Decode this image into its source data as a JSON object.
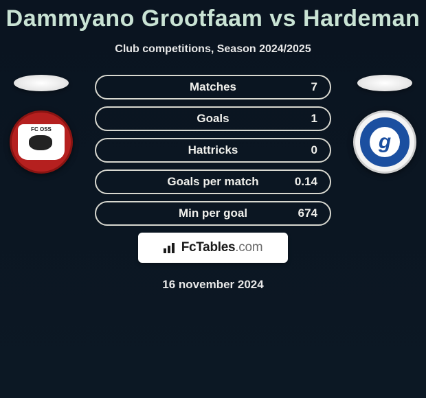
{
  "title": "Dammyano Grootfaam vs Hardeman",
  "subtitle": "Club competitions, Season 2024/2025",
  "colors": {
    "title": "#c9e3d4",
    "bg_top": "#0a1420",
    "bg_bottom": "#0c1824",
    "pill_border": "#d8d8d0",
    "pill_text": "#f0f0ec",
    "left_badge_bg": "#b5201f",
    "right_badge_bg": "#f4f4f4",
    "right_badge_inner": "#1b4fa0"
  },
  "typography": {
    "title_fontsize": 34,
    "subtitle_fontsize": 16,
    "pill_fontsize": 17
  },
  "left_badge_text": "FC OSS",
  "right_badge_letter": "g",
  "stats": [
    {
      "label": "Matches",
      "value": "7"
    },
    {
      "label": "Goals",
      "value": "1"
    },
    {
      "label": "Hattricks",
      "value": "0"
    },
    {
      "label": "Goals per match",
      "value": "0.14"
    },
    {
      "label": "Min per goal",
      "value": "674"
    }
  ],
  "brand": {
    "name": "FcTables",
    "suffix": ".com"
  },
  "date": "16 november 2024"
}
